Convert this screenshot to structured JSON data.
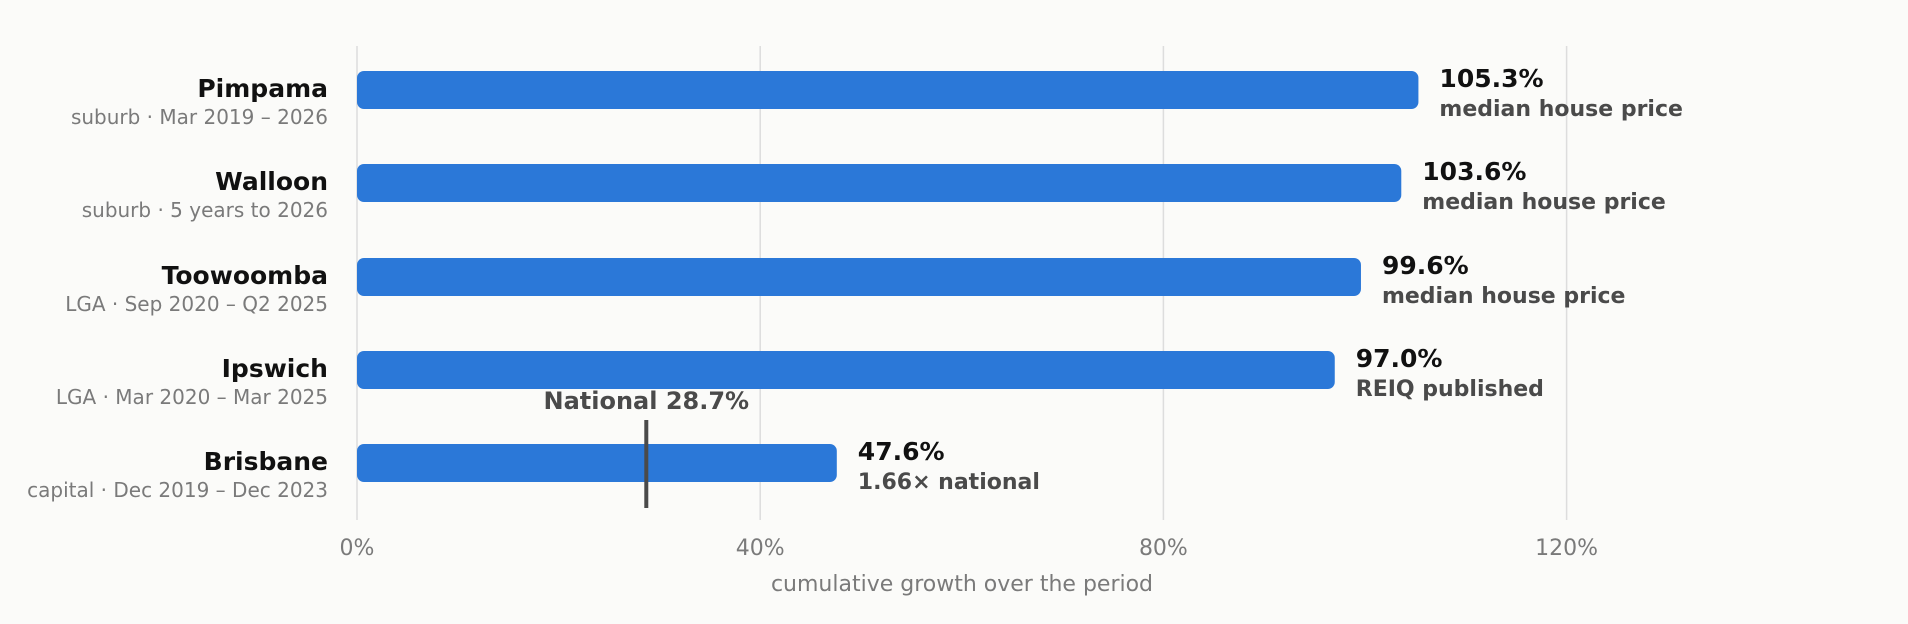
{
  "chart_data": {
    "type": "bar",
    "orientation": "horizontal",
    "categories": [
      "Pimpama",
      "Walloon",
      "Toowoomba",
      "Ipswich",
      "Brisbane"
    ],
    "subtitles": [
      "suburb · Mar 2019 – 2026",
      "suburb · 5 years to 2026",
      "LGA · Sep 2020 – Q2 2025",
      "LGA · Mar 2020 – Mar 2025",
      "capital · Dec 2019 – Dec 2023"
    ],
    "values": [
      105.3,
      103.6,
      99.6,
      97.0,
      47.6
    ],
    "value_labels": [
      "105.3%",
      "103.6%",
      "99.6%",
      "97.0%",
      "47.6%"
    ],
    "notes": [
      "median house price",
      "median house price",
      "median house price",
      "REIQ published",
      "1.66× national"
    ],
    "reference_line": {
      "value": 28.7,
      "label": "National 28.7%",
      "row": "Brisbane"
    },
    "xlabel": "cumulative growth over the period",
    "xticks": [
      0,
      40,
      80,
      120
    ],
    "xtick_labels": [
      "0%",
      "40%",
      "80%",
      "120%"
    ],
    "xlim": [
      0,
      150
    ],
    "grid": "vertical",
    "bar_color": "#2b78d8",
    "gridline_color": "#dddddd",
    "reference_color": "#4a4a4a"
  }
}
